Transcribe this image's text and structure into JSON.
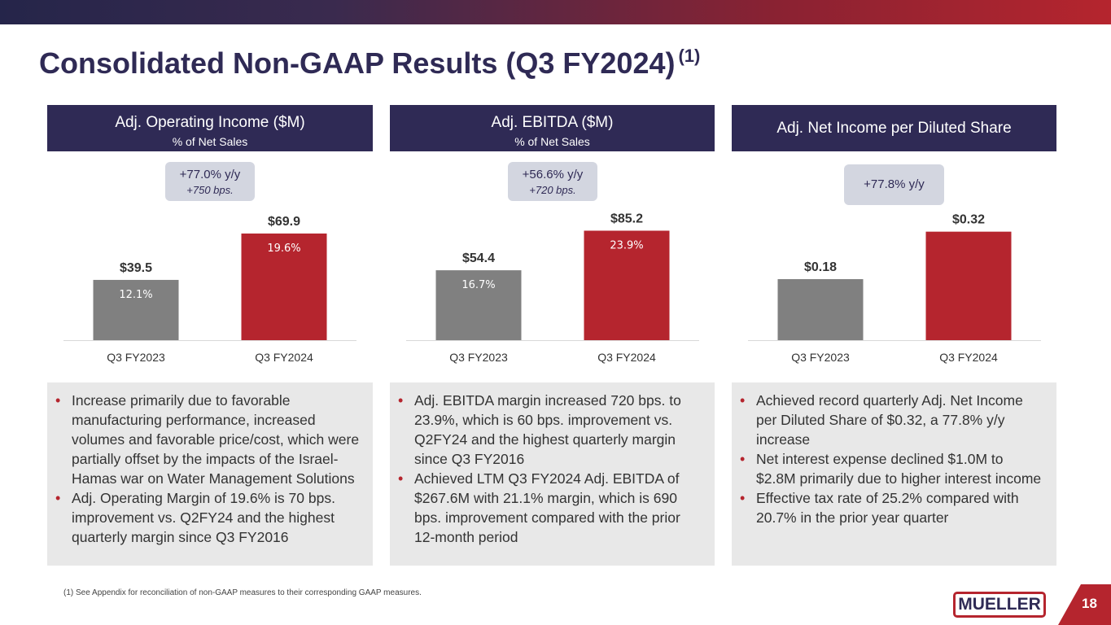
{
  "title": "Consolidated Non-GAAP Results (Q3 FY2024)",
  "title_footnote_ref": "(1)",
  "colors": {
    "navy": "#2f2a55",
    "red": "#b5252e",
    "gray": "#808080"
  },
  "panels": [
    {
      "header": "Adj. Operating Income ($M)",
      "subheader": "% of Net Sales",
      "badge": "+77.0% y/y",
      "badge_sub": "+750 bps."
    },
    {
      "header": "Adj. EBITDA ($M)",
      "subheader": "% of Net Sales",
      "badge": "+56.6% y/y",
      "badge_sub": "+720 bps."
    },
    {
      "header": "Adj. Net Income per Diluted Share",
      "badge": "+77.8% y/y"
    }
  ],
  "chart_data": [
    {
      "type": "bar",
      "title": "Adj. Operating Income ($M)",
      "categories": [
        "Q3 FY2023",
        "Q3 FY2024"
      ],
      "values": [
        39.5,
        69.9
      ],
      "value_labels": [
        "$39.5",
        "$69.9"
      ],
      "inner_labels": [
        "12.1%",
        "19.6%"
      ],
      "ylim": [
        0,
        80
      ]
    },
    {
      "type": "bar",
      "title": "Adj. EBITDA ($M)",
      "categories": [
        "Q3 FY2023",
        "Q3 FY2024"
      ],
      "values": [
        54.4,
        85.2
      ],
      "value_labels": [
        "$54.4",
        "$85.2"
      ],
      "inner_labels": [
        "16.7%",
        "23.9%"
      ],
      "ylim": [
        0,
        95
      ]
    },
    {
      "type": "bar",
      "title": "Adj. Net Income per Diluted Share",
      "categories": [
        "Q3 FY2023",
        "Q3 FY2024"
      ],
      "values": [
        0.18,
        0.32
      ],
      "value_labels": [
        "$0.18",
        "$0.32"
      ],
      "inner_labels": [
        "",
        ""
      ],
      "ylim": [
        0,
        0.36
      ]
    }
  ],
  "notes": [
    [
      "Increase primarily due to favorable manufacturing performance, increased volumes and favorable price/cost, which were partially offset by the impacts of the Israel-Hamas war on Water Management Solutions",
      "Adj. Operating Margin of 19.6% is 70 bps. improvement vs. Q2FY24 and the highest quarterly margin since Q3 FY2016"
    ],
    [
      "Adj. EBITDA margin increased 720 bps. to 23.9%, which is 60 bps. improvement vs. Q2FY24 and the highest quarterly margin since Q3 FY2016",
      "Achieved LTM Q3 FY2024 Adj. EBITDA of $267.6M with 21.1% margin, which is 690 bps. improvement compared with the prior 12-month period"
    ],
    [
      "Achieved record quarterly Adj. Net Income per Diluted Share of $0.32, a 77.8% y/y increase",
      "Net interest expense declined $1.0M to $2.8M primarily due to higher interest income",
      "Effective tax rate of 25.2% compared with 20.7% in the prior year quarter"
    ]
  ],
  "footnote": "(1)  See Appendix for reconciliation of non-GAAP measures to their corresponding GAAP measures.",
  "logo_text": "MUELLER",
  "page_number": "18"
}
